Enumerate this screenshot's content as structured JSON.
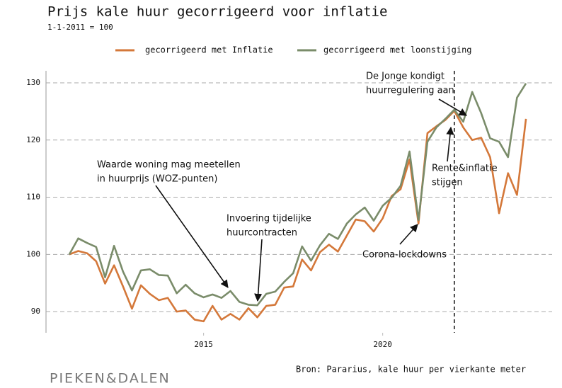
{
  "chart_data": {
    "type": "line",
    "title": "Prijs kale huur gecorrigeerd voor inflatie",
    "subtitle": "1-1-2011 = 100",
    "source": "Bron: Pararius, kale huur per vierkante meter",
    "logo": "PIEKEN&DALEN",
    "x": [
      2011.25,
      2011.5,
      2011.75,
      2012,
      2012.25,
      2012.5,
      2012.75,
      2013,
      2013.25,
      2013.5,
      2013.75,
      2014,
      2014.25,
      2014.5,
      2014.75,
      2015,
      2015.25,
      2015.5,
      2015.75,
      2016,
      2016.25,
      2016.5,
      2016.75,
      2017,
      2017.25,
      2017.5,
      2017.75,
      2018,
      2018.25,
      2018.5,
      2018.75,
      2019,
      2019.25,
      2019.5,
      2019.75,
      2020,
      2020.25,
      2020.5,
      2020.75,
      2021,
      2021.25,
      2021.5,
      2021.75,
      2022,
      2022.25,
      2022.5,
      2022.75,
      2023,
      2023.25,
      2023.5,
      2023.75,
      2024
    ],
    "series": [
      {
        "name": "gecorrigeerd met Inflatie",
        "color": "#d4783a",
        "values": [
          100,
          100.6,
          100.2,
          98.8,
          94.9,
          98.1,
          94.4,
          90.5,
          94.6,
          93.1,
          92,
          92.4,
          90,
          90.2,
          88.6,
          88.3,
          91,
          88.6,
          89.6,
          88.6,
          90.6,
          89,
          91,
          91.2,
          94.2,
          94.4,
          99.1,
          97.2,
          100.4,
          101.7,
          100.5,
          103.3,
          106.1,
          105.8,
          104,
          106.3,
          110.2,
          111.4,
          116.6,
          105.4,
          121.2,
          122.4,
          123.5,
          125.1,
          122.2,
          120,
          120.4,
          117,
          107.2,
          114.2,
          110.4,
          123.7
        ]
      },
      {
        "name": "gecorrigeerd met loonstijging",
        "color": "#7a8c6a",
        "values": [
          100,
          102.8,
          102,
          101.3,
          96,
          101.5,
          97,
          93.7,
          97.2,
          97.4,
          96.4,
          96.3,
          93.2,
          94.7,
          93.2,
          92.5,
          93,
          92.4,
          93.6,
          91.7,
          91.2,
          91.1,
          93.1,
          93.5,
          95.2,
          96.7,
          101.4,
          98.9,
          101.6,
          103.6,
          102.7,
          105.4,
          107,
          108.2,
          105.9,
          108.5,
          109.9,
          112,
          118,
          106,
          119.7,
          122.2,
          123.7,
          125.3,
          123.2,
          128.4,
          124.7,
          120.3,
          119.7,
          117,
          127.4,
          129.9
        ]
      }
    ],
    "xlim": [
      2010.6,
      2024.73
    ],
    "xticks": [
      2015,
      2020
    ],
    "ylim": [
      86.3,
      132.1
    ],
    "yticks": [
      90,
      100,
      110,
      120,
      130
    ],
    "grid": true,
    "vlines": [
      2022
    ],
    "annotations": [
      {
        "text": [
          "Waarde woning mag meetellen",
          "in huurprijs (WOZ-punten)"
        ]
      },
      {
        "text": [
          "Invoering tijdelijke",
          "huurcontracten"
        ]
      },
      {
        "text": [
          "De Jonge kondigt",
          "huurregulering aan"
        ]
      },
      {
        "text": [
          "Rente&inflatie",
          "stijgen"
        ]
      },
      {
        "text": [
          "Corona-lockdowns"
        ]
      }
    ]
  }
}
